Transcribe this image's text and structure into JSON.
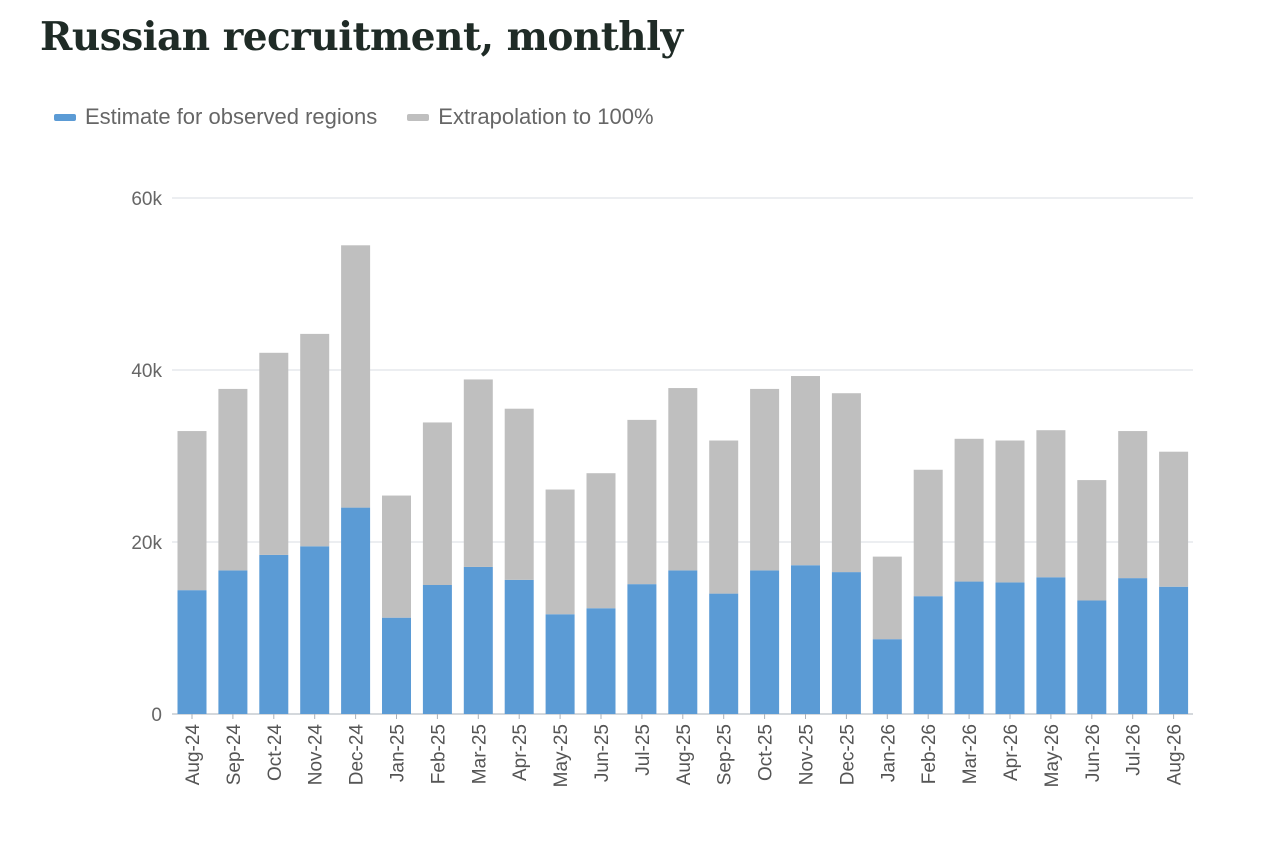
{
  "chart_data": {
    "type": "bar",
    "stacked": true,
    "title": "Russian recruitment, monthly",
    "legend_position": "top-left",
    "grid": true,
    "ylim": [
      0,
      60000
    ],
    "yticks": [
      0,
      20000,
      40000,
      60000
    ],
    "ytick_labels": [
      "0",
      "20k",
      "40k",
      "60k"
    ],
    "categories": [
      "Aug-24",
      "Sep-24",
      "Oct-24",
      "Nov-24",
      "Dec-24",
      "Jan-25",
      "Feb-25",
      "Mar-25",
      "Apr-25",
      "May-25",
      "Jun-25",
      "Jul-25",
      "Aug-25",
      "Sep-25",
      "Oct-25",
      "Nov-25",
      "Dec-25",
      "Jan-26",
      "Feb-26",
      "Mar-26",
      "Apr-26",
      "May-26",
      "Jun-26",
      "Jul-26",
      "Aug-26"
    ],
    "series": [
      {
        "name": "Estimate for observed regions",
        "color": "#5b9bd5",
        "values": [
          14400,
          16700,
          18500,
          19500,
          24000,
          11200,
          15000,
          17100,
          15600,
          11600,
          12300,
          15100,
          16700,
          14000,
          16700,
          17300,
          16500,
          8700,
          13700,
          15400,
          15300,
          15900,
          13200,
          15800,
          14800
        ]
      },
      {
        "name": "Extrapolation to 100%",
        "color": "#bfbfbf",
        "values": [
          18500,
          21100,
          23500,
          24700,
          30500,
          14200,
          18900,
          21800,
          19900,
          14500,
          15700,
          19100,
          21200,
          17800,
          21100,
          22000,
          20800,
          9600,
          14700,
          16600,
          16500,
          17100,
          14000,
          17100,
          15700
        ]
      }
    ]
  }
}
